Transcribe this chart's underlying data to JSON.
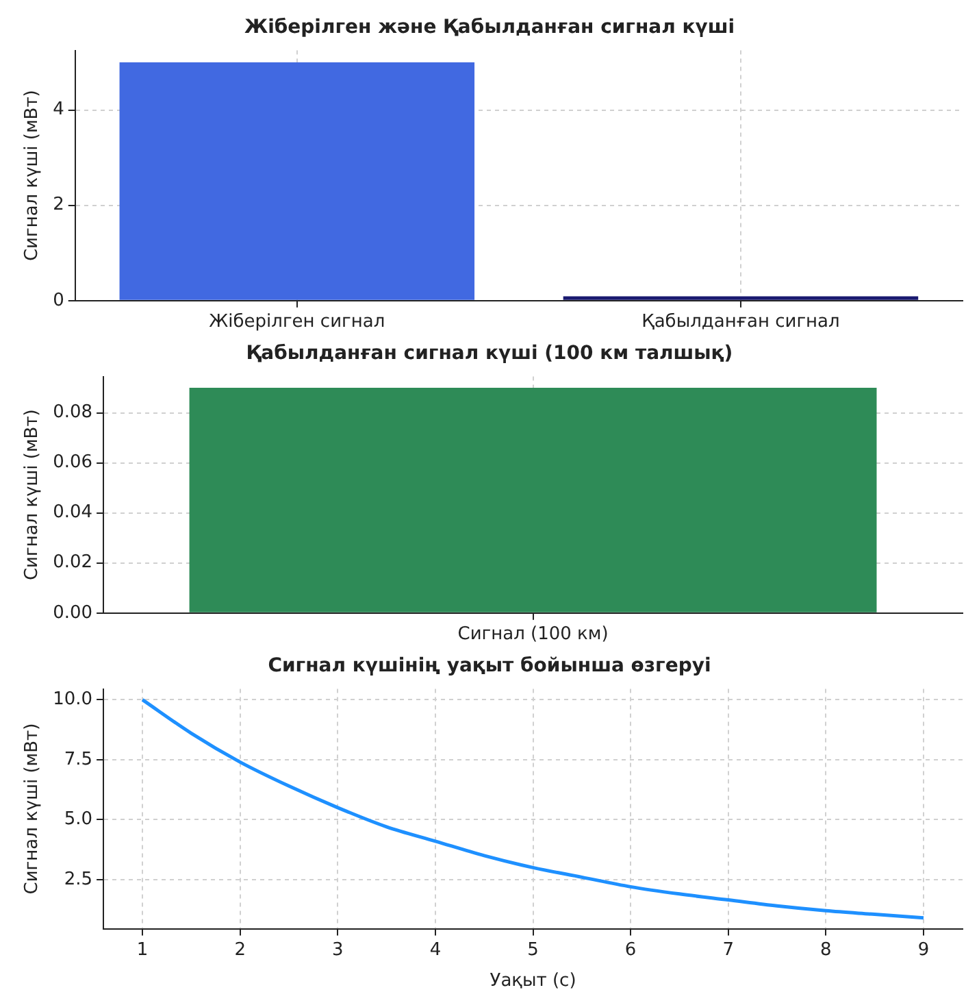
{
  "chart_data": [
    {
      "type": "bar",
      "title": "Жіберілген және Қабылданған сигнал күші",
      "ylabel": "Сигнал күші (мВт)",
      "categories": [
        "Жіберілген сигнал",
        "Қабылданған сигнал"
      ],
      "values": [
        5,
        0.09
      ],
      "colors": [
        "#4169e1",
        "#191970"
      ],
      "ylim": [
        0,
        5.25
      ],
      "yticks": [
        0,
        2,
        4
      ],
      "grid": true
    },
    {
      "type": "bar",
      "title": "Қабылданған сигнал күші (100 км талшық)",
      "ylabel": "Сигнал күші (мВт)",
      "categories": [
        "Сигнал (100 км)"
      ],
      "values": [
        0.09
      ],
      "colors": [
        "#2e8b57"
      ],
      "ylim": [
        0,
        0.0945
      ],
      "yticks": [
        {
          "value": 0,
          "label": "0.00"
        },
        {
          "value": 0.02,
          "label": "0.02"
        },
        {
          "value": 0.04,
          "label": "0.04"
        },
        {
          "value": 0.06,
          "label": "0.06"
        },
        {
          "value": 0.08,
          "label": "0.08"
        }
      ],
      "grid": true
    },
    {
      "type": "line",
      "title": "Сигнал күшінің уақыт бойынша өзгеруі",
      "xlabel": "Уақыт (с)",
      "ylabel": "Сигнал күші (мВт)",
      "x": [
        1,
        1.5,
        2,
        2.5,
        3,
        3.5,
        4,
        4.5,
        5,
        5.5,
        6,
        6.5,
        7,
        7.5,
        8,
        8.5,
        9
      ],
      "series": [
        {
          "color": "#1e90ff",
          "values": [
            10,
            8.6,
            7.4,
            6.4,
            5.5,
            4.7,
            4.1,
            3.5,
            3.0,
            2.6,
            2.2,
            1.9,
            1.65,
            1.4,
            1.2,
            1.05,
            0.9
          ]
        }
      ],
      "xlim": [
        0.6,
        9.4
      ],
      "xticks": [
        1,
        2,
        3,
        4,
        5,
        6,
        7,
        8,
        9
      ],
      "ylim": [
        0.45,
        10.45
      ],
      "yticks": [
        {
          "value": 2.5,
          "label": "2.5"
        },
        {
          "value": 5,
          "label": "5.0"
        },
        {
          "value": 7.5,
          "label": "7.5"
        },
        {
          "value": 10,
          "label": "10.0"
        }
      ],
      "grid": true,
      "marker": "none"
    }
  ]
}
